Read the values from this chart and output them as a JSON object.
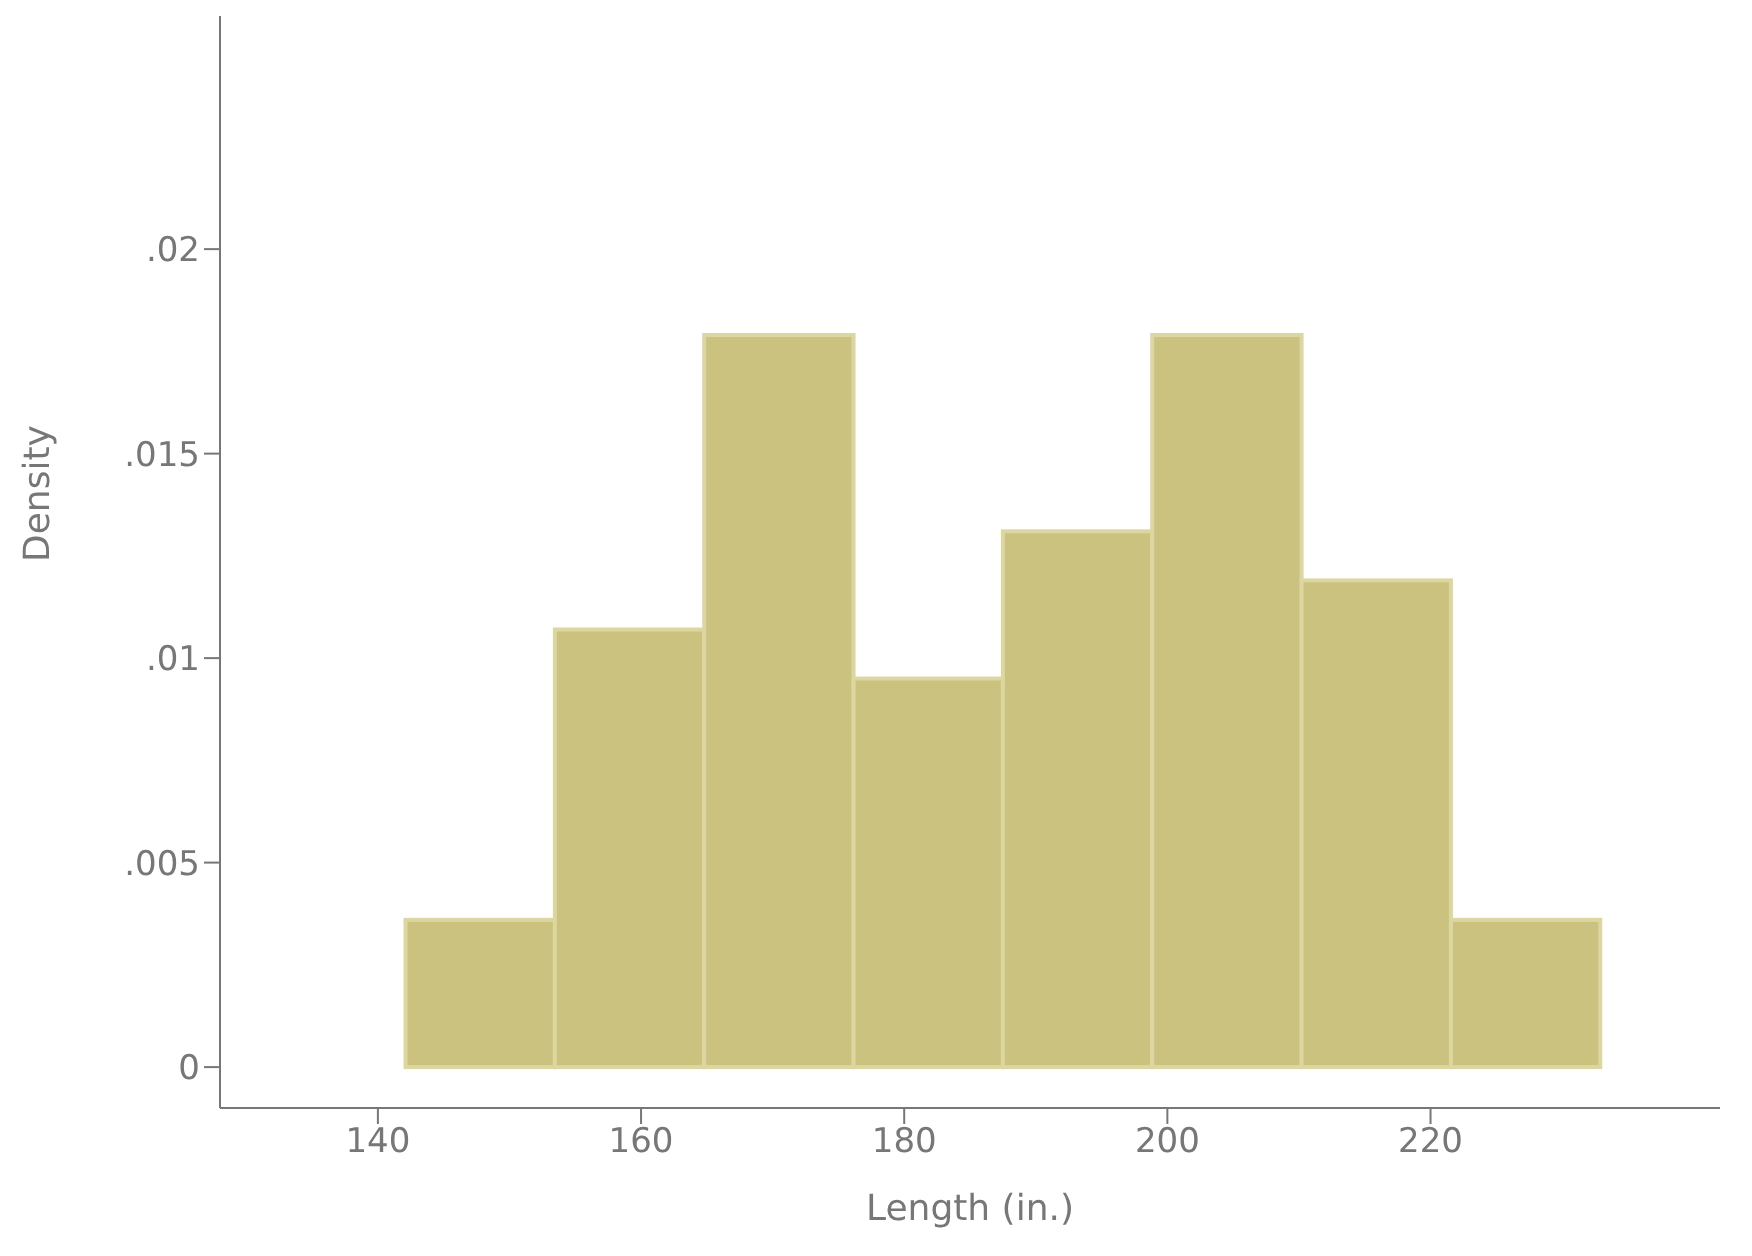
{
  "chart_data": {
    "type": "histogram",
    "xlabel": "Length (in.)",
    "ylabel": "Density",
    "bins": [
      142.1,
      153.45,
      164.8,
      176.15,
      187.5,
      198.85,
      210.2,
      221.55,
      232.9
    ],
    "values": [
      0.0036,
      0.0107,
      0.0179,
      0.0095,
      0.0131,
      0.0179,
      0.0119,
      0.0036
    ],
    "color": "#cbc27f",
    "xlim": [
      128,
      242
    ],
    "xticks": [
      140,
      160,
      180,
      200,
      220
    ],
    "ylim": [
      -0.001,
      0.0257
    ],
    "yticks": [
      0,
      {
        "value": 0.005,
        "label": ".005"
      },
      {
        "value": 0.01,
        "label": ".01"
      },
      {
        "value": 0.015,
        "label": ".015"
      },
      {
        "value": 0.02,
        "label": ".02"
      }
    ],
    "grid": false
  }
}
